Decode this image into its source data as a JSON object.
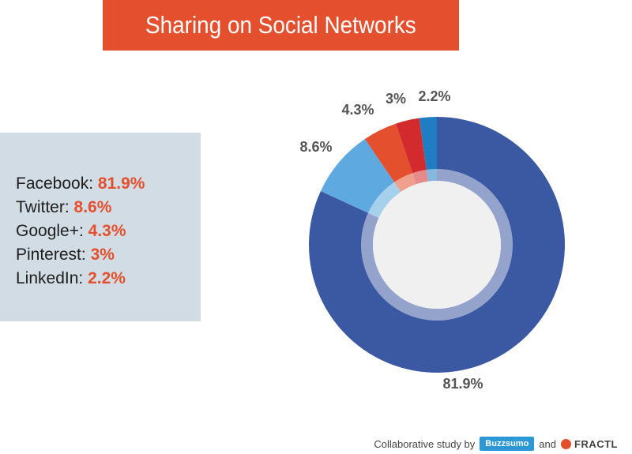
{
  "title": "Sharing on Social Networks",
  "legend": [
    {
      "label": "Facebook:",
      "value": "81.9%"
    },
    {
      "label": "Twitter:",
      "value": "8.6%"
    },
    {
      "label": "Google+:",
      "value": "4.3%"
    },
    {
      "label": "Pinterest:",
      "value": "3%"
    },
    {
      "label": "LinkedIn:",
      "value": "2.2%"
    }
  ],
  "footer": {
    "study_text": "Collaborative study by",
    "buzzsumo": "Buzzsumo",
    "and_text": "and",
    "fractl": "FRACTL"
  },
  "chart_data": {
    "type": "pie",
    "style": "donut",
    "title": "Sharing on Social Networks",
    "categories": [
      "Facebook",
      "Twitter",
      "Google+",
      "Pinterest",
      "LinkedIn"
    ],
    "values": [
      81.9,
      8.6,
      4.3,
      3,
      2.2
    ],
    "labels": [
      "81.9%",
      "8.6%",
      "4.3%",
      "3%",
      "2.2%"
    ],
    "colors": [
      "#3b58a2",
      "#5ea9df",
      "#e4502e",
      "#d22a2d",
      "#1f7ec1"
    ]
  },
  "colors": {
    "banner": "#e4502e",
    "legend_bg": "#d2dce4",
    "value_text": "#e4502e"
  }
}
